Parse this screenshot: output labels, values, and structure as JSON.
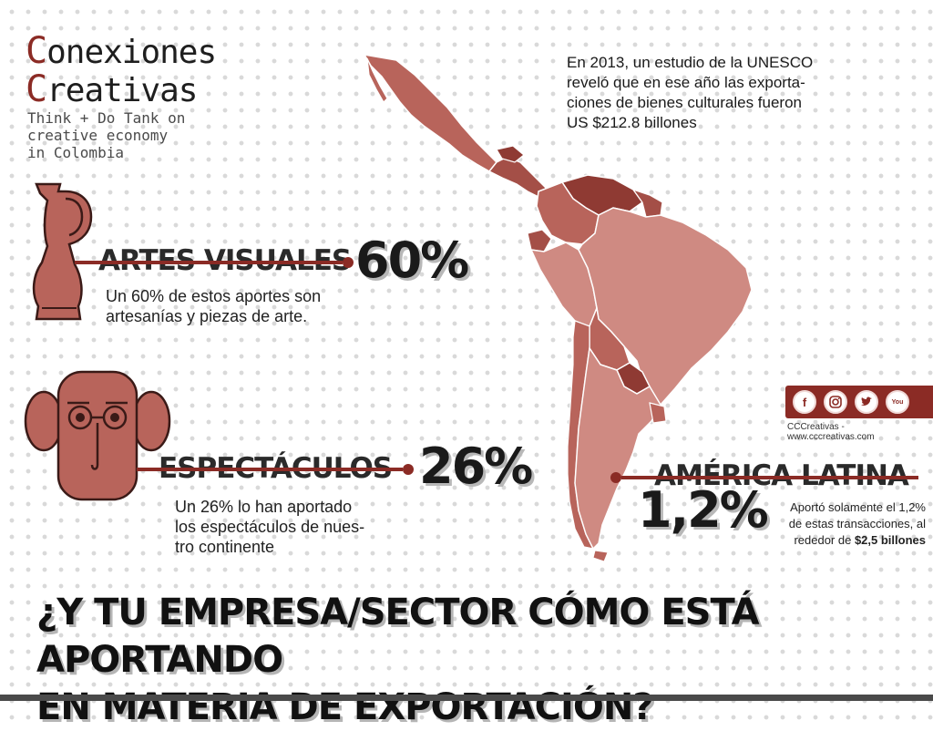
{
  "brand": {
    "title_line1_initial": "C",
    "title_line1_rest": "onexiones",
    "title_line2_initial": "C",
    "title_line2_rest": "reativas",
    "tagline_1": "Think + Do Tank on",
    "tagline_2": "creative economy",
    "tagline_3": "in Colombia"
  },
  "intro": {
    "line_1": "En 2013, un estudio de la UNESCO",
    "line_2": "reveló que en ese año las exporta-",
    "line_3": "ciones de bienes culturales fueron",
    "line_4": "US $212.8 billones"
  },
  "artes": {
    "title": "ARTES VISUALES",
    "percent": "60%",
    "desc_1": "Un 60% de estos aportes son",
    "desc_2": "artesanías y piezas de arte."
  },
  "espectaculos": {
    "title": "ESPECTÁCULOS",
    "percent": "26%",
    "desc_1": "Un 26% lo han aportado",
    "desc_2": "los espectáculos de nues-",
    "desc_3": "tro continente"
  },
  "america": {
    "title": "AMÉRICA LATINA",
    "percent": "1,2%",
    "desc_1": "Aportó solamente el 1,2%",
    "desc_2": "de estas transacciones, al",
    "desc_3_prefix": "rededor de ",
    "desc_3_bold": "$2,5 billones"
  },
  "social": {
    "icons": [
      "facebook-icon",
      "instagram-icon",
      "twitter-icon",
      "youtube-icon"
    ],
    "icon_facebook": "f",
    "icon_youtube": "You",
    "caption": "CCCreativas - www.cccreativas.com"
  },
  "question": {
    "line_1": "¿Y TU EMPRESA/SECTOR CÓMO ESTÁ APORTANDO",
    "line_2": "EN MATERIA DE EXPORTACIÓN?"
  },
  "colors": {
    "accent": "#8b2b25",
    "map_light": "#cf8a82",
    "map_mid": "#b8645b",
    "map_dark": "#8f3a33"
  }
}
